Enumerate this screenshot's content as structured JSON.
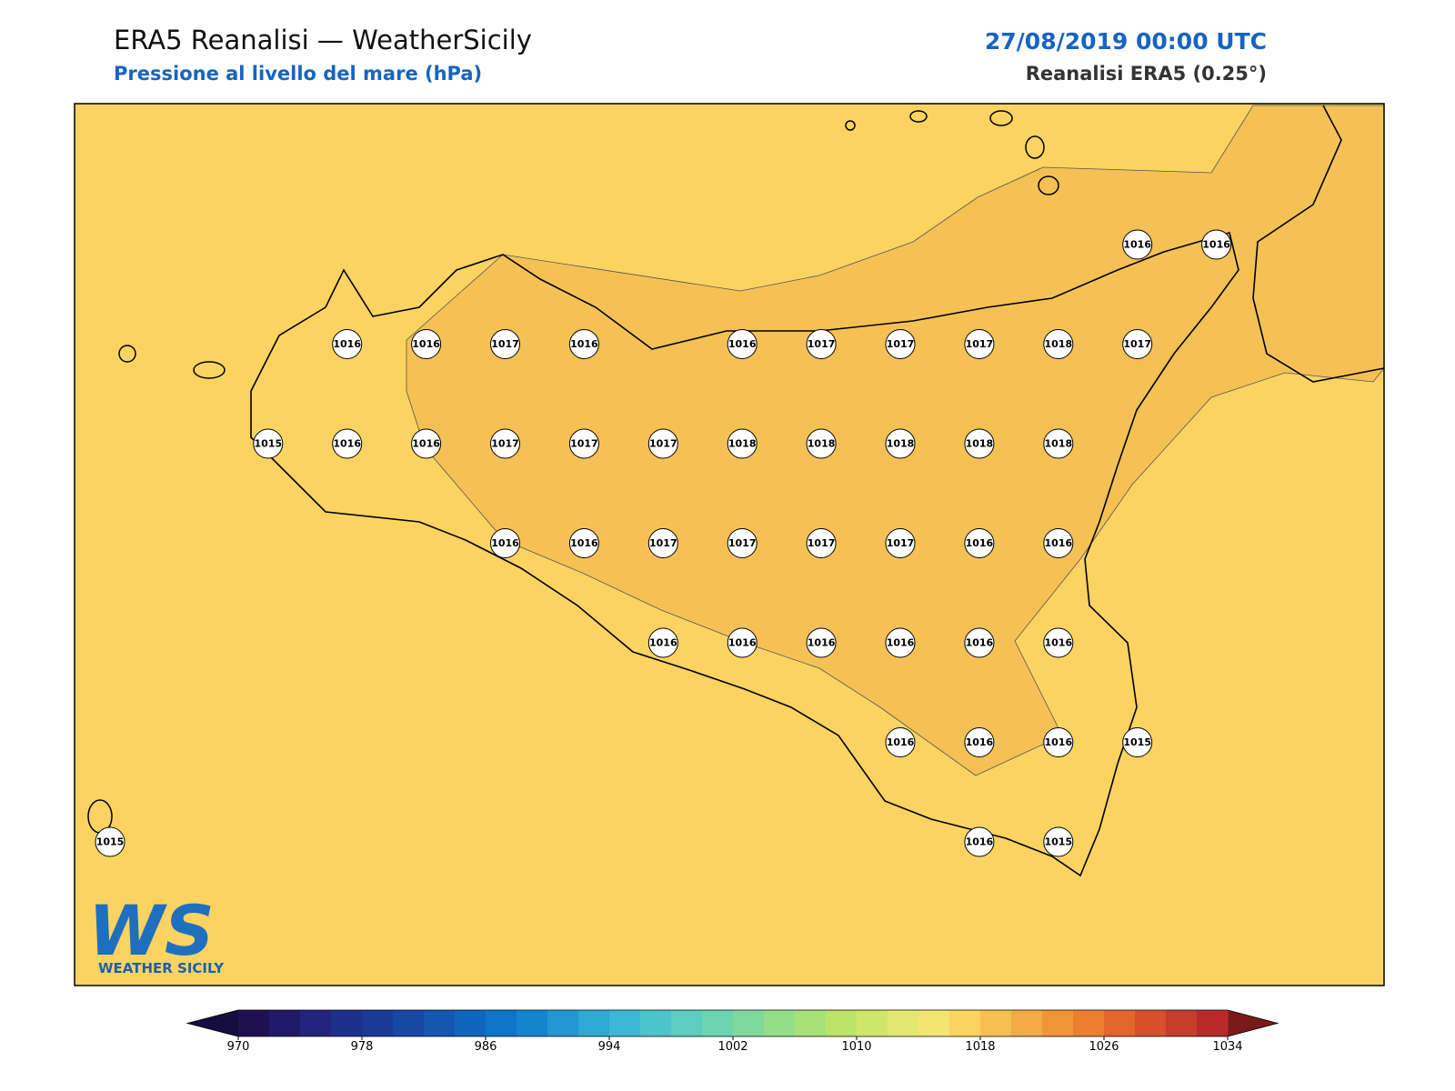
{
  "header": {
    "title": "ERA5 Reanalisi — WeatherSicily",
    "subtitle": "Pressione al livello del mare (hPa)",
    "date": "27/08/2019 00:00 UTC",
    "source": "Reanalisi ERA5 (0.25°)"
  },
  "logo": {
    "text": "WS",
    "caption": "WEATHER SICILY"
  },
  "points": [
    1016,
    1016,
    1016,
    1016,
    1017,
    1016,
    1016,
    1017,
    1017,
    1017,
    1018,
    1017,
    1015,
    1016,
    1016,
    1017,
    1017,
    1017,
    1018,
    1018,
    1018,
    1018,
    1018,
    1016,
    1016,
    1017,
    1017,
    1017,
    1017,
    1016,
    1016,
    1016,
    1016,
    1016,
    1016,
    1016,
    1016,
    1016,
    1016,
    1016,
    1015,
    1015,
    1016,
    1015
  ],
  "colorbar": {
    "range": [
      970,
      1034
    ],
    "levels": [
      970,
      972,
      974,
      976,
      978,
      980,
      982,
      984,
      986,
      988,
      990,
      992,
      994,
      996,
      998,
      1000,
      1002,
      1004,
      1006,
      1008,
      1010,
      1012,
      1014,
      1016,
      1018,
      1020,
      1022,
      1024,
      1026,
      1028,
      1030,
      1032,
      1034
    ],
    "colors": [
      "#1f1150",
      "#211a6a",
      "#23247e",
      "#1f2f8c",
      "#1b3a98",
      "#1748a3",
      "#1357b0",
      "#0f66bd",
      "#0d76c8",
      "#1285cf",
      "#2096d2",
      "#2ea8d4",
      "#3ab8d4",
      "#4cc4cc",
      "#5ccdc0",
      "#6cd4b0",
      "#80d99c",
      "#94de88",
      "#a8e276",
      "#bce468",
      "#d0e66a",
      "#e2e870",
      "#f4e470",
      "#fbd35f",
      "#f6c050",
      "#f4ab44",
      "#f09638",
      "#eb7e30",
      "#e4652c",
      "#d8502a",
      "#c73e2a",
      "#b82a2a"
    ],
    "under": "#150d40",
    "over": "#7a1a1a",
    "ticks": [
      970,
      978,
      986,
      994,
      1002,
      1010,
      1018,
      1026,
      1034
    ]
  }
}
